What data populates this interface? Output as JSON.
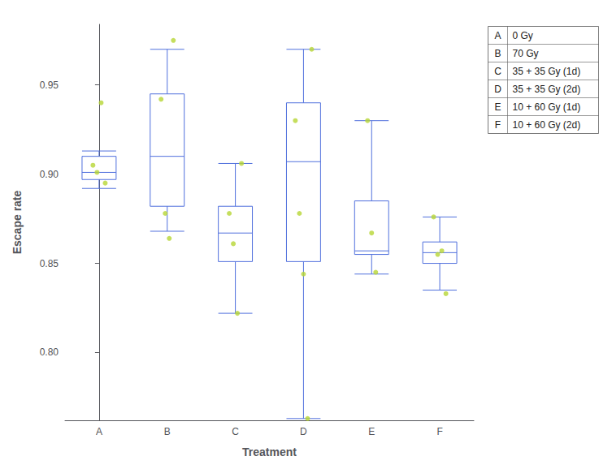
{
  "chart_data": {
    "type": "boxplot",
    "xlabel": "Treatment",
    "ylabel": "Escape rate",
    "categories": [
      "A",
      "B",
      "C",
      "D",
      "E",
      "F"
    ],
    "boxes": [
      {
        "low": 0.892,
        "q1": 0.897,
        "median": 0.901,
        "q3": 0.91,
        "high": 0.913
      },
      {
        "low": 0.868,
        "q1": 0.882,
        "median": 0.91,
        "q3": 0.945,
        "high": 0.97
      },
      {
        "low": 0.822,
        "q1": 0.851,
        "median": 0.867,
        "q3": 0.882,
        "high": 0.906
      },
      {
        "low": 0.763,
        "q1": 0.851,
        "median": 0.907,
        "q3": 0.94,
        "high": 0.97
      },
      {
        "low": 0.844,
        "q1": 0.855,
        "median": 0.857,
        "q3": 0.885,
        "high": 0.93
      },
      {
        "low": 0.835,
        "q1": 0.85,
        "median": 0.856,
        "q3": 0.862,
        "high": 0.876
      }
    ],
    "points": [
      [
        0.905,
        0.901,
        0.94,
        0.895
      ],
      [
        0.942,
        0.878,
        0.864,
        0.975
      ],
      [
        0.878,
        0.861,
        0.822,
        0.906
      ],
      [
        0.93,
        0.878,
        0.844,
        0.763,
        0.97
      ],
      [
        0.93,
        0.867,
        0.845
      ],
      [
        0.876,
        0.855,
        0.857,
        0.833
      ]
    ],
    "ylim": [
      0.762,
      0.984
    ],
    "yticks": [
      {
        "value": 0.8,
        "label": "0.80"
      },
      0.85,
      {
        "value": 0.9,
        "label": "0.90"
      },
      0.95
    ],
    "grid": false,
    "annotations": [
      {
        "label": "A",
        "text": "0 Gy"
      },
      {
        "label": "B",
        "text": "70 Gy"
      },
      {
        "label": "C",
        "text": "35 + 35 Gy (1d)"
      },
      {
        "label": "D",
        "text": "35 + 35 Gy (2d)"
      },
      {
        "label": "E",
        "text": "10 + 60 Gy (1d)"
      },
      {
        "label": "F",
        "text": "10 + 60 Gy (2d)"
      }
    ]
  }
}
